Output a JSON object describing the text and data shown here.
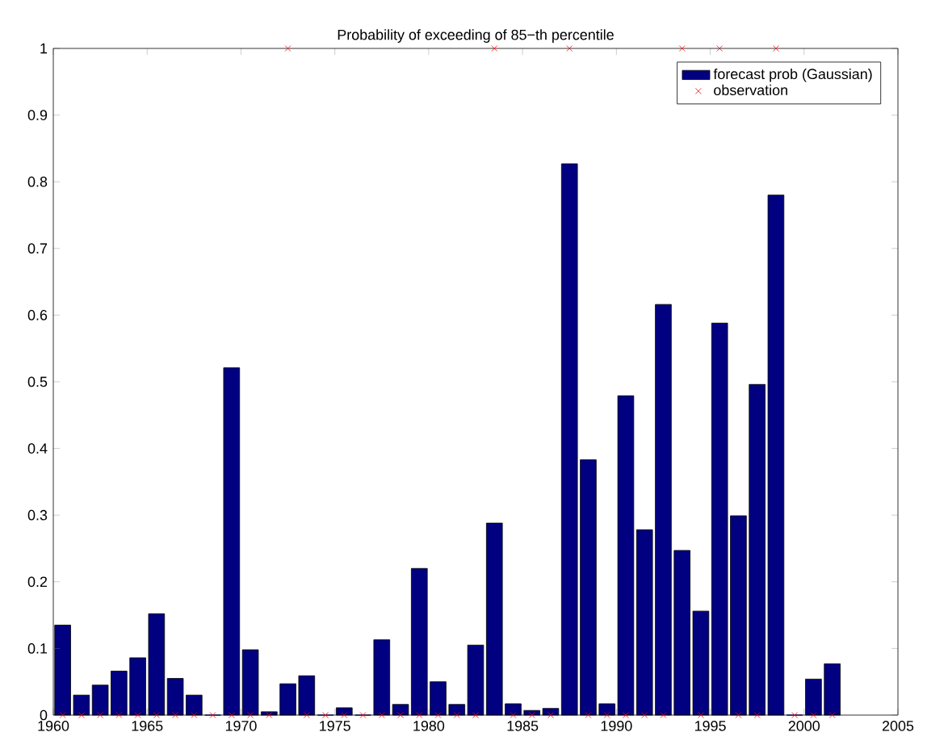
{
  "chart_data": {
    "type": "bar",
    "title": "Probability of exceeding of 85−th percentile",
    "x": [
      1960.5,
      1961.5,
      1962.5,
      1963.5,
      1964.5,
      1965.5,
      1966.5,
      1967.5,
      1968.5,
      1969.5,
      1970.5,
      1971.5,
      1972.5,
      1973.5,
      1974.5,
      1975.5,
      1976.5,
      1977.5,
      1978.5,
      1979.5,
      1980.5,
      1981.5,
      1982.5,
      1983.5,
      1984.5,
      1985.5,
      1986.5,
      1987.5,
      1988.5,
      1989.5,
      1990.5,
      1991.5,
      1992.5,
      1993.5,
      1994.5,
      1995.5,
      1996.5,
      1997.5,
      1998.5,
      1999.5,
      2000.5,
      2001.5
    ],
    "series": [
      {
        "name": "forecast prob (Gaussian)",
        "color": "#000080",
        "values": [
          0.135,
          0.03,
          0.045,
          0.066,
          0.086,
          0.152,
          0.055,
          0.03,
          0,
          0.521,
          0.098,
          0.005,
          0.047,
          0.059,
          0,
          0.011,
          0,
          0.113,
          0.016,
          0.22,
          0.05,
          0.016,
          0.105,
          0.288,
          0.017,
          0.007,
          0.01,
          0.827,
          0.383,
          0.017,
          0.479,
          0.278,
          0.616,
          0.247,
          0.156,
          0.588,
          0.299,
          0.496,
          0.78,
          0,
          0.054,
          0.077
        ]
      },
      {
        "name": "observation",
        "type": "scatter",
        "color": "#ff0000",
        "marker": "cross",
        "values": [
          0,
          0,
          0,
          0,
          0,
          0,
          0,
          0,
          0,
          0,
          0,
          0,
          1,
          0,
          0,
          0,
          0,
          0,
          0,
          0,
          0,
          0,
          0,
          1,
          0,
          0,
          0,
          1,
          0,
          0,
          0,
          0,
          0,
          1,
          0,
          1,
          0,
          0,
          1,
          0,
          0,
          0
        ]
      }
    ],
    "xlim": [
      1960,
      2005
    ],
    "ylim": [
      0,
      1
    ],
    "xticks": [
      1960,
      1965,
      1970,
      1975,
      1980,
      1985,
      1990,
      1995,
      2000,
      2005
    ],
    "yticks": [
      0,
      0.1,
      0.2,
      0.3,
      0.4,
      0.5,
      0.6,
      0.7,
      0.8,
      0.9,
      1
    ],
    "legend": "top right",
    "grid": false
  }
}
